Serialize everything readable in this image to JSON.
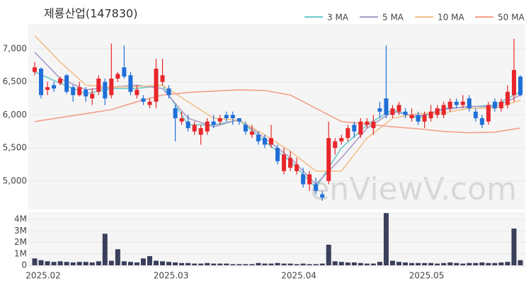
{
  "chart_data": [
    {
      "type": "candlestick",
      "title": "제룡산업(147830)",
      "watermark": "enViewV.com",
      "up_color": "#e8262b",
      "down_color": "#1f6fd8",
      "grid": true,
      "legend": "top-right",
      "ylim": [
        4570,
        7375
      ],
      "yticks": [
        {
          "value": 5000,
          "label": "5,000"
        },
        {
          "value": 5500,
          "label": "5,500"
        },
        {
          "value": 6000,
          "label": "6,000"
        },
        {
          "value": 6500,
          "label": "6,500"
        },
        {
          "value": 7000,
          "label": "7,000"
        }
      ],
      "open": [
        6650,
        6700,
        6380,
        6450,
        6480,
        6600,
        6420,
        6300,
        6380,
        6250,
        6350,
        6500,
        6300,
        6550,
        6720,
        6600,
        6300,
        6250,
        6150,
        6200,
        6500,
        6400,
        6100,
        5900,
        5900,
        5750,
        5700,
        5750,
        5900,
        5900,
        6000,
        6000,
        5950,
        5850,
        5700,
        5700,
        5650,
        5550,
        5500,
        5150,
        5200,
        5150,
        5100,
        4950,
        4950,
        4800,
        5000,
        5500,
        5600,
        5650,
        5850,
        5700,
        5850,
        5800,
        6100,
        6250,
        6000,
        6050,
        6050,
        5950,
        6000,
        5900,
        5950,
        6000,
        6000,
        6100,
        6200,
        6150,
        6250,
        6050,
        5950,
        5900,
        6200,
        6100,
        6150,
        6300,
        6580
      ],
      "high": [
        6800,
        6720,
        6500,
        6500,
        6580,
        6620,
        6450,
        6500,
        6420,
        6400,
        6600,
        6550,
        7080,
        6650,
        7050,
        6650,
        6450,
        6300,
        6250,
        6850,
        6850,
        6450,
        6150,
        6050,
        6000,
        5900,
        5850,
        5950,
        6000,
        6000,
        6050,
        6050,
        5950,
        5900,
        5850,
        5750,
        5700,
        5850,
        5550,
        5500,
        5450,
        5350,
        5200,
        5150,
        5050,
        4850,
        5900,
        5650,
        5700,
        5850,
        5900,
        5950,
        5950,
        6000,
        6200,
        7050,
        6150,
        6200,
        6100,
        6100,
        6050,
        6050,
        6150,
        6150,
        6200,
        6250,
        6250,
        6300,
        6300,
        6100,
        6000,
        6200,
        6250,
        6250,
        6450,
        7150,
        6600
      ],
      "low": [
        6600,
        6250,
        6300,
        6350,
        6450,
        6320,
        6200,
        6280,
        6200,
        6150,
        6300,
        6150,
        6250,
        6500,
        6550,
        6300,
        6250,
        6150,
        6100,
        6100,
        6450,
        6250,
        5600,
        5850,
        5750,
        5700,
        5550,
        5700,
        5800,
        5850,
        5900,
        5850,
        5850,
        5700,
        5650,
        5550,
        5500,
        5500,
        5250,
        5100,
        5150,
        5100,
        4900,
        4850,
        4800,
        4700,
        4950,
        5400,
        5550,
        5600,
        5650,
        5650,
        5800,
        5700,
        5950,
        5950,
        5950,
        6000,
        5950,
        5900,
        5850,
        5800,
        5900,
        5950,
        5950,
        6050,
        6100,
        6100,
        6050,
        5900,
        5800,
        5850,
        6050,
        6050,
        6100,
        6200,
        6280
      ],
      "close": [
        6720,
        6300,
        6420,
        6400,
        6550,
        6350,
        6300,
        6420,
        6280,
        6320,
        6550,
        6250,
        6550,
        6620,
        6580,
        6350,
        6380,
        6200,
        6200,
        6700,
        6600,
        6300,
        5950,
        5950,
        5800,
        5850,
        5800,
        5900,
        5850,
        5950,
        5950,
        5950,
        5900,
        5750,
        5750,
        5600,
        5550,
        5650,
        5300,
        5400,
        5350,
        5250,
        4950,
        5100,
        4850,
        4750,
        5650,
        5600,
        5650,
        5800,
        5750,
        5900,
        5900,
        5900,
        6050,
        6000,
        6100,
        6150,
        6000,
        6000,
        5900,
        6000,
        6050,
        6100,
        6150,
        6200,
        6150,
        6200,
        6100,
        5950,
        5850,
        6150,
        6100,
        6200,
        6350,
        6680,
        6300
      ],
      "series": [
        {
          "name": "3 MA",
          "color": "#6cc9c9",
          "x": [
            0,
            4,
            8,
            12,
            16,
            20,
            24,
            28,
            32,
            36,
            40,
            44,
            48,
            52,
            56,
            60,
            64,
            68,
            72,
            76
          ],
          "values": [
            6650,
            6480,
            6320,
            6400,
            6400,
            6450,
            5850,
            5850,
            5920,
            5600,
            5300,
            4900,
            5500,
            5850,
            6080,
            5950,
            6100,
            6120,
            6150,
            6350
          ]
        },
        {
          "name": "5 MA",
          "color": "#a99bc8",
          "x": [
            0,
            4,
            8,
            12,
            16,
            20,
            24,
            28,
            32,
            36,
            40,
            44,
            48,
            52,
            56,
            60,
            64,
            68,
            72,
            76
          ],
          "values": [
            6950,
            6550,
            6380,
            6420,
            6450,
            6400,
            5950,
            5820,
            5930,
            5650,
            5350,
            4950,
            5350,
            5800,
            6050,
            5980,
            6080,
            6130,
            6120,
            6300
          ]
        },
        {
          "name": "10 MA",
          "color": "#f3c08a",
          "x": [
            0,
            4,
            8,
            12,
            16,
            20,
            24,
            28,
            32,
            36,
            40,
            44,
            48,
            52,
            56,
            60,
            64,
            68,
            72,
            76
          ],
          "values": [
            7200,
            6800,
            6450,
            6420,
            6430,
            6450,
            6200,
            5950,
            5920,
            5700,
            5450,
            5150,
            5150,
            5650,
            5950,
            6020,
            6030,
            6100,
            6100,
            6220
          ]
        },
        {
          "name": "50 MA",
          "color": "#f2a08a",
          "x": [
            0,
            4,
            8,
            12,
            16,
            20,
            24,
            28,
            32,
            36,
            40,
            44,
            48,
            52,
            56,
            60,
            64,
            68,
            72,
            76
          ],
          "values": [
            5900,
            5960,
            6020,
            6080,
            6200,
            6300,
            6340,
            6360,
            6380,
            6370,
            6300,
            6100,
            5900,
            5860,
            5820,
            5790,
            5750,
            5730,
            5740,
            5800
          ]
        }
      ]
    },
    {
      "type": "bar",
      "color": "#3a3f5c",
      "ylim": [
        0,
        4500000
      ],
      "yticks": [
        0,
        {
          "value": 1000000,
          "label": "1M"
        },
        {
          "value": 2000000,
          "label": "2M"
        },
        {
          "value": 3000000,
          "label": "3M"
        },
        {
          "value": 4000000,
          "label": "4M"
        }
      ],
      "categories": [
        "2025.02",
        null,
        null,
        null,
        null,
        null,
        null,
        null,
        null,
        null,
        null,
        null,
        null,
        null,
        null,
        null,
        null,
        null,
        null,
        null,
        "2025.03",
        null,
        null,
        null,
        null,
        null,
        null,
        null,
        null,
        null,
        null,
        null,
        null,
        null,
        null,
        null,
        null,
        null,
        null,
        null,
        "2025.04",
        null,
        null,
        null,
        null,
        null,
        null,
        null,
        null,
        null,
        null,
        null,
        null,
        null,
        null,
        null,
        null,
        null,
        null,
        null,
        "2025.05",
        null,
        null,
        null,
        null,
        null,
        null,
        null,
        null,
        null,
        null,
        null,
        null,
        null,
        null,
        null,
        null
      ],
      "values": [
        600000,
        450000,
        350000,
        300000,
        350000,
        300000,
        250000,
        300000,
        300000,
        250000,
        350000,
        2750000,
        400000,
        1400000,
        350000,
        300000,
        250000,
        600000,
        800000,
        400000,
        350000,
        300000,
        250000,
        200000,
        200000,
        150000,
        150000,
        200000,
        150000,
        150000,
        150000,
        100000,
        100000,
        100000,
        100000,
        200000,
        150000,
        150000,
        200000,
        150000,
        150000,
        100000,
        150000,
        100000,
        100000,
        150000,
        1800000,
        350000,
        300000,
        250000,
        250000,
        200000,
        150000,
        150000,
        300000,
        4550000,
        400000,
        300000,
        250000,
        200000,
        200000,
        200000,
        200000,
        150000,
        200000,
        250000,
        200000,
        150000,
        200000,
        200000,
        250000,
        200000,
        200000,
        250000,
        300000,
        3200000,
        450000
      ]
    }
  ]
}
